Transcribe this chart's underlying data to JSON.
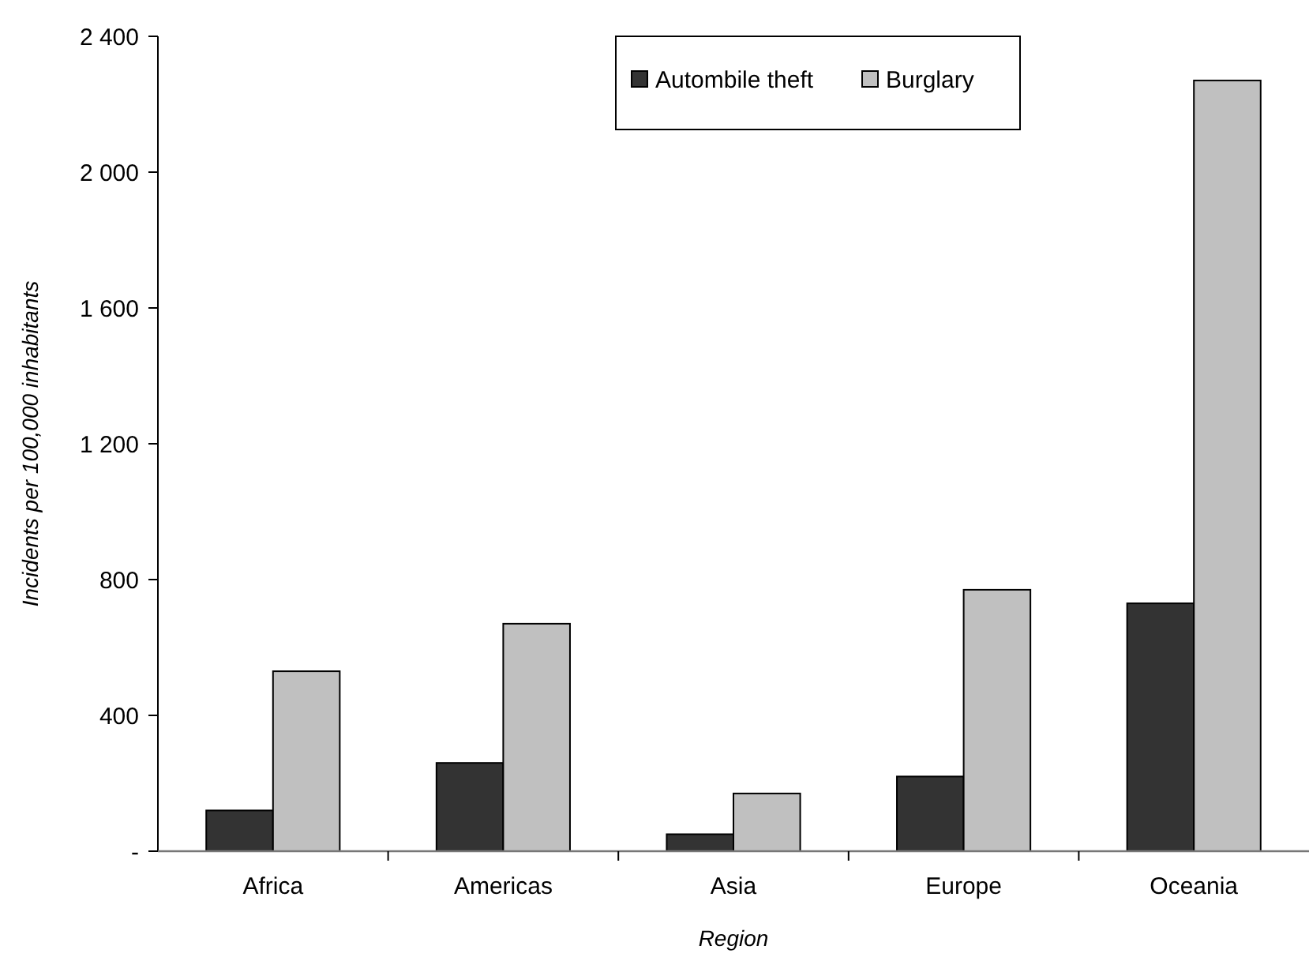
{
  "chart_data": {
    "type": "bar",
    "xlabel": "Region",
    "ylabel": "Incidents per 100,000 inhabitants",
    "categories": [
      "Africa",
      "Americas",
      "Asia",
      "Europe",
      "Oceania"
    ],
    "series": [
      {
        "name": "Autombile theft",
        "color": "#333333",
        "values": [
          120,
          260,
          50,
          220,
          730
        ]
      },
      {
        "name": "Burglary",
        "color": "#c0c0c0",
        "values": [
          530,
          670,
          170,
          770,
          2270
        ]
      }
    ],
    "ylim": [
      0,
      2400
    ],
    "yticks": [
      {
        "value": 0,
        "label": "-"
      },
      {
        "value": 400,
        "label": "400"
      },
      {
        "value": 800,
        "label": "800"
      },
      {
        "value": 1200,
        "label": "1 200"
      },
      {
        "value": 1600,
        "label": "1 600"
      },
      {
        "value": 2000,
        "label": "2 000"
      },
      {
        "value": 2400,
        "label": "2 400"
      }
    ],
    "grid": false,
    "legend": "top"
  }
}
